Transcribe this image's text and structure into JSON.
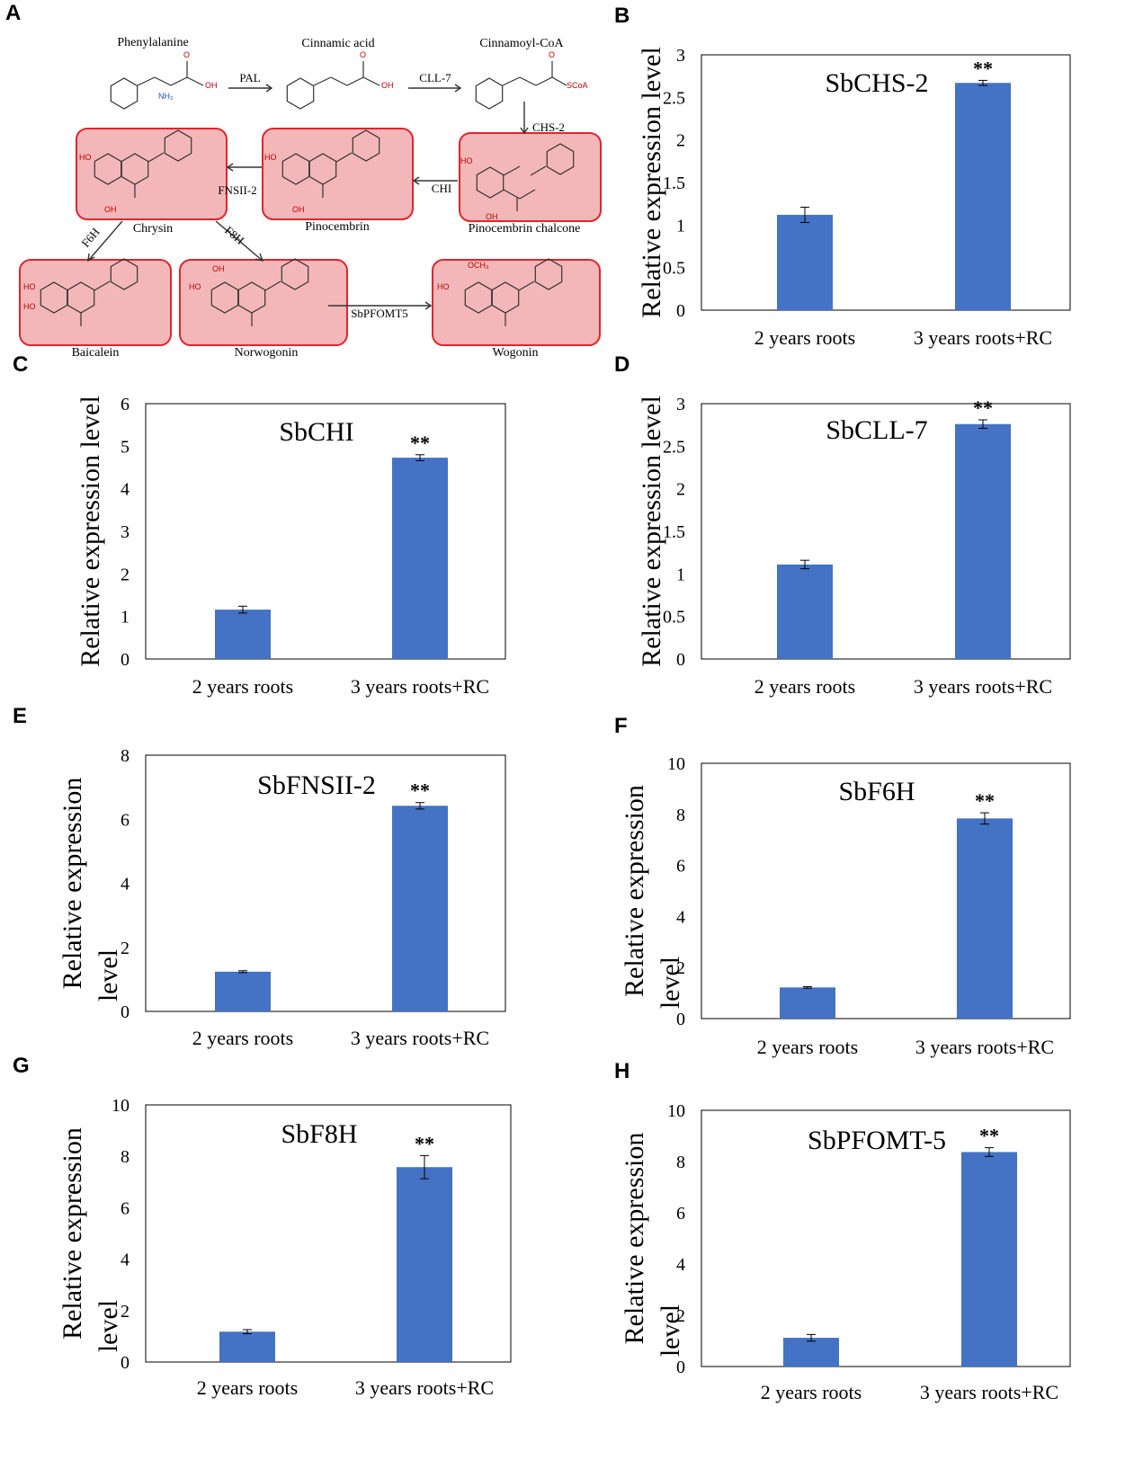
{
  "panel_a": {
    "letter": "A",
    "compounds": [
      "Phenylalanine",
      "Cinnamic acid",
      "Cinnamoyl-CoA",
      "Pinocembrin chalcone",
      "Pinocembrin",
      "Chrysin",
      "Baicalein",
      "Norwogonin",
      "Wogonin"
    ],
    "enzymes": [
      "PAL",
      "CLL-7",
      "CHS-2",
      "CHI",
      "FNSII-2",
      "F6H",
      "F8H",
      "SbPFOMT5"
    ],
    "atoms": [
      "HO",
      "OH",
      "O",
      "NH₂",
      "SCoA",
      "OCH₃"
    ]
  },
  "chart_data": [
    {
      "type": "bar",
      "letter": "B",
      "title": "SbCHS-2",
      "ylabel": "Relative expression level",
      "categories": [
        "2 years roots",
        "3 years roots+RC"
      ],
      "values": [
        1.12,
        2.67
      ],
      "errors": [
        0.09,
        0.03
      ],
      "ylim": [
        0,
        3
      ],
      "ticks": [
        "0",
        "0.5",
        "1",
        "1.5",
        "2",
        "2.5",
        "3"
      ],
      "significance": "**"
    },
    {
      "type": "bar",
      "letter": "C",
      "title": "SbCHI",
      "ylabel": "Relative expression level",
      "categories": [
        "2 years roots",
        "3 years roots+RC"
      ],
      "values": [
        1.16,
        4.73
      ],
      "errors": [
        0.08,
        0.07
      ],
      "ylim": [
        0,
        6
      ],
      "ticks": [
        "0",
        "1",
        "2",
        "3",
        "4",
        "5",
        "6"
      ],
      "significance": "**"
    },
    {
      "type": "bar",
      "letter": "D",
      "title": "SbCLL-7",
      "ylabel": "Relative expression level",
      "categories": [
        "2 years roots",
        "3 years roots+RC"
      ],
      "values": [
        1.11,
        2.76
      ],
      "errors": [
        0.05,
        0.05
      ],
      "ylim": [
        0,
        3
      ],
      "ticks": [
        "0",
        "0.5",
        "1",
        "1.5",
        "2",
        "2.5",
        "3"
      ],
      "significance": "**"
    },
    {
      "type": "bar",
      "letter": "E",
      "title": "SbFNSII-2",
      "ylabel": "Relative expression level",
      "categories": [
        "2 years roots",
        "3 years roots+RC"
      ],
      "values": [
        1.24,
        6.42
      ],
      "errors": [
        0.03,
        0.1
      ],
      "ylim": [
        0,
        8
      ],
      "ticks": [
        "0",
        "2",
        "4",
        "6",
        "8"
      ],
      "significance": "**"
    },
    {
      "type": "bar",
      "letter": "F",
      "title": "SbF6H",
      "ylabel": "Relative expression level",
      "categories": [
        "2 years roots",
        "3 years roots+RC"
      ],
      "values": [
        1.22,
        7.84
      ],
      "errors": [
        0.03,
        0.22
      ],
      "ylim": [
        0,
        10
      ],
      "ticks": [
        "0",
        "2",
        "4",
        "6",
        "8",
        "10"
      ],
      "significance": "**"
    },
    {
      "type": "bar",
      "letter": "G",
      "title": "SbF8H",
      "ylabel": "Relative expression level",
      "categories": [
        "2 years roots",
        "3 years roots+RC"
      ],
      "values": [
        1.18,
        7.58
      ],
      "errors": [
        0.08,
        0.45
      ],
      "ylim": [
        0,
        10
      ],
      "ticks": [
        "0",
        "2",
        "4",
        "6",
        "8",
        "10"
      ],
      "significance": "**"
    },
    {
      "type": "bar",
      "letter": "H",
      "title": "SbPFOMT-5",
      "ylabel": "Relative expression level",
      "categories": [
        "2 years roots",
        "3 years roots+RC"
      ],
      "values": [
        1.12,
        8.37
      ],
      "errors": [
        0.13,
        0.17
      ],
      "ylim": [
        0,
        10
      ],
      "ticks": [
        "0",
        "2",
        "4",
        "6",
        "8",
        "10"
      ],
      "significance": "**"
    }
  ],
  "colors": {
    "bar": "#4472c4",
    "highlight_fill": "#f4b7b9",
    "highlight_stroke": "#e0262c"
  }
}
